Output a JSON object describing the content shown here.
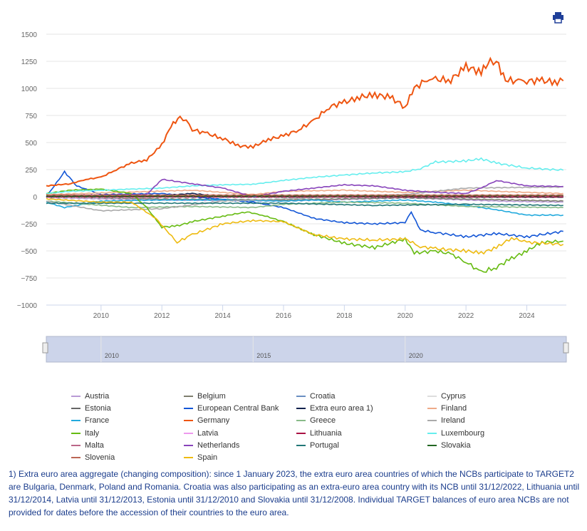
{
  "toolbar": {
    "print_icon": "printer-icon"
  },
  "chart_data": {
    "type": "line",
    "title": "",
    "xlabel": "",
    "ylabel": "",
    "ylim": [
      -1000,
      1500
    ],
    "xlim": [
      2008.2,
      2025.3
    ],
    "yticks": [
      "1500",
      "1250",
      "1000",
      "750",
      "500",
      "250",
      "0",
      "−250",
      "−500",
      "−750",
      "−1000"
    ],
    "ytick_values": [
      1500,
      1250,
      1000,
      750,
      500,
      250,
      0,
      -250,
      -500,
      -750,
      -1000
    ],
    "xticks": [
      "2010",
      "2012",
      "2014",
      "2016",
      "2018",
      "2020",
      "2022",
      "2024"
    ],
    "xtick_values": [
      2010,
      2012,
      2014,
      2016,
      2018,
      2020,
      2022,
      2024
    ],
    "grid": true,
    "legend_placement": "bottom",
    "navigator": {
      "labels": [
        "2010",
        "2015",
        "2020"
      ],
      "values": [
        2010,
        2015,
        2020
      ]
    },
    "series": [
      {
        "name": "Austria",
        "color": "#b99ad6",
        "x": [
          2008.2,
          2012,
          2016,
          2020,
          2023,
          2025.2
        ],
        "y": [
          -10,
          -30,
          -40,
          -10,
          -40,
          -50
        ]
      },
      {
        "name": "Belgium",
        "color": "#7f7f6f",
        "x": [
          2008.2,
          2012,
          2016,
          2020,
          2025.2
        ],
        "y": [
          0,
          -20,
          -30,
          -10,
          -40
        ]
      },
      {
        "name": "Croatia",
        "color": "#6a8fc2",
        "x": [
          2008.2,
          2025.2
        ],
        "y": [
          0,
          0
        ]
      },
      {
        "name": "Cyprus",
        "color": "#dddddd",
        "x": [
          2008.2,
          2025.2
        ],
        "y": [
          -5,
          -5
        ]
      },
      {
        "name": "Estonia",
        "color": "#666666",
        "x": [
          2008.2,
          2025.2
        ],
        "y": [
          0,
          -5
        ]
      },
      {
        "name": "European Central Bank",
        "color": "#1356d6",
        "x": [
          2008.2,
          2008.8,
          2009.2,
          2010,
          2012,
          2013,
          2015,
          2016,
          2017,
          2018,
          2019,
          2020,
          2020.2,
          2020.5,
          2021,
          2022,
          2023,
          2024,
          2025.2
        ],
        "y": [
          0,
          230,
          100,
          20,
          30,
          0,
          -50,
          -100,
          -200,
          -240,
          -250,
          -240,
          -140,
          -310,
          -330,
          -370,
          -340,
          -370,
          -320
        ]
      },
      {
        "name": "Extra euro area 1)",
        "color": "#10214d",
        "x": [
          2008.2,
          2012,
          2013,
          2014,
          2025.2
        ],
        "y": [
          0,
          10,
          30,
          0,
          0
        ]
      },
      {
        "name": "Finland",
        "color": "#eeaa88",
        "x": [
          2008.2,
          2013,
          2015,
          2016,
          2018,
          2020,
          2022,
          2024,
          2025.2
        ],
        "y": [
          20,
          60,
          20,
          50,
          60,
          40,
          60,
          40,
          30
        ]
      },
      {
        "name": "France",
        "color": "#22aadd",
        "x": [
          2008.2,
          2008.8,
          2010,
          2012,
          2014,
          2016,
          2017,
          2018,
          2020,
          2021,
          2022,
          2023,
          2024,
          2025.2
        ],
        "y": [
          -50,
          -100,
          -40,
          -30,
          -30,
          -40,
          -30,
          -50,
          -30,
          -50,
          -80,
          -120,
          -170,
          -170
        ]
      },
      {
        "name": "Germany",
        "color": "#ee5511",
        "x": [
          2008.2,
          2009,
          2009.5,
          2010,
          2010.5,
          2011,
          2011.5,
          2012,
          2012.3,
          2012.6,
          2012.8,
          2013,
          2013.5,
          2014,
          2014.5,
          2015,
          2015.5,
          2016,
          2016.5,
          2017,
          2017.5,
          2018,
          2018.5,
          2019,
          2019.5,
          2020,
          2020.3,
          2020.8,
          2021,
          2021.5,
          2022,
          2022.5,
          2022.8,
          2023,
          2023.3,
          2023.8,
          2024,
          2024.5,
          2025,
          2025.2
        ],
        "y": [
          100,
          120,
          160,
          180,
          250,
          310,
          340,
          480,
          650,
          740,
          700,
          620,
          580,
          540,
          470,
          460,
          530,
          560,
          620,
          700,
          830,
          870,
          920,
          940,
          920,
          830,
          1000,
          1100,
          1080,
          1080,
          1200,
          1150,
          1260,
          1250,
          1080,
          1060,
          1070,
          1070,
          1060,
          1070
        ]
      },
      {
        "name": "Greece",
        "color": "#88bb88",
        "x": [
          2008.2,
          2011,
          2013,
          2015,
          2016,
          2018,
          2020,
          2022,
          2025.2
        ],
        "y": [
          -40,
          -100,
          -90,
          -100,
          -70,
          -50,
          -60,
          -90,
          -100
        ]
      },
      {
        "name": "Ireland",
        "color": "#aaaaaa",
        "x": [
          2008.2,
          2010,
          2012,
          2014,
          2016,
          2018,
          2020,
          2022,
          2025.2
        ],
        "y": [
          -40,
          -130,
          -110,
          -40,
          -20,
          0,
          20,
          80,
          90
        ]
      },
      {
        "name": "Italy",
        "color": "#66bb11",
        "x": [
          2008.2,
          2009,
          2010,
          2011,
          2011.5,
          2012,
          2012.5,
          2013,
          2014,
          2014.8,
          2015.3,
          2016,
          2017,
          2018,
          2019,
          2020,
          2020.3,
          2021,
          2021.5,
          2022,
          2022.5,
          2023,
          2023.5,
          2024,
          2024.5,
          2025.2
        ],
        "y": [
          30,
          60,
          70,
          30,
          -100,
          -280,
          -270,
          -230,
          -180,
          -140,
          -170,
          -230,
          -350,
          -430,
          -470,
          -390,
          -520,
          -500,
          -530,
          -600,
          -700,
          -650,
          -570,
          -500,
          -420,
          -410
        ]
      },
      {
        "name": "Latvia",
        "color": "#ee99ee",
        "x": [
          2008.2,
          2025.2
        ],
        "y": [
          5,
          5
        ]
      },
      {
        "name": "Lithuania",
        "color": "#aa1144",
        "x": [
          2008.2,
          2025.2
        ],
        "y": [
          0,
          0
        ]
      },
      {
        "name": "Luxembourg",
        "color": "#66eeee",
        "x": [
          2008.2,
          2009,
          2010,
          2011,
          2012,
          2013,
          2014,
          2015,
          2016,
          2017,
          2018,
          2019,
          2020,
          2020.5,
          2021,
          2022,
          2022.5,
          2023,
          2024,
          2025.2
        ],
        "y": [
          30,
          50,
          60,
          70,
          80,
          100,
          110,
          115,
          150,
          180,
          200,
          220,
          230,
          260,
          320,
          330,
          350,
          310,
          265,
          245
        ]
      },
      {
        "name": "Malta",
        "color": "#bb6688",
        "x": [
          2008.2,
          2025.2
        ],
        "y": [
          10,
          10
        ]
      },
      {
        "name": "Netherlands",
        "color": "#8844bb",
        "x": [
          2008.2,
          2011.5,
          2012,
          2013,
          2014,
          2015,
          2016,
          2017,
          2018,
          2019,
          2020,
          2021,
          2022,
          2022.5,
          2023,
          2024,
          2025.2
        ],
        "y": [
          10,
          20,
          160,
          120,
          80,
          0,
          50,
          80,
          110,
          100,
          60,
          40,
          30,
          80,
          150,
          100,
          95
        ]
      },
      {
        "name": "Portugal",
        "color": "#227777",
        "x": [
          2008.2,
          2012,
          2016,
          2019,
          2022,
          2025.2
        ],
        "y": [
          -60,
          -60,
          -60,
          -80,
          -70,
          -80
        ]
      },
      {
        "name": "Slovakia",
        "color": "#226622",
        "x": [
          2008.2,
          2025.2
        ],
        "y": [
          5,
          10
        ]
      },
      {
        "name": "Slovenia",
        "color": "#bb6655",
        "x": [
          2008.2,
          2025.2
        ],
        "y": [
          15,
          15
        ]
      },
      {
        "name": "Spain",
        "color": "#eebb11",
        "x": [
          2008.2,
          2010,
          2011,
          2011.8,
          2012.5,
          2013,
          2014,
          2015,
          2016,
          2017,
          2018,
          2019,
          2020,
          2020.5,
          2021,
          2022,
          2022.5,
          2023,
          2023.5,
          2024,
          2025.2
        ],
        "y": [
          -20,
          -50,
          -50,
          -200,
          -420,
          -350,
          -250,
          -220,
          -230,
          -350,
          -390,
          -400,
          -390,
          -460,
          -480,
          -500,
          -520,
          -470,
          -380,
          -420,
          -440
        ]
      }
    ]
  },
  "footnote": "1) Extra euro area aggregate (changing composition): since 1 January 2023, the extra euro area countries of which the NCBs participate to TARGET2 are Bulgaria, Denmark, Poland and Romania. Croatia was also participating as an extra-euro area country with its NCB until 31/12/2022, Lithuania until 31/12/2014, Latvia until 31/12/2013, Estonia until 31/12/2010 and Slovakia until 31/12/2008. Individual TARGET balances of euro area NCBs are not provided for dates before the accession of their countries to the euro area."
}
